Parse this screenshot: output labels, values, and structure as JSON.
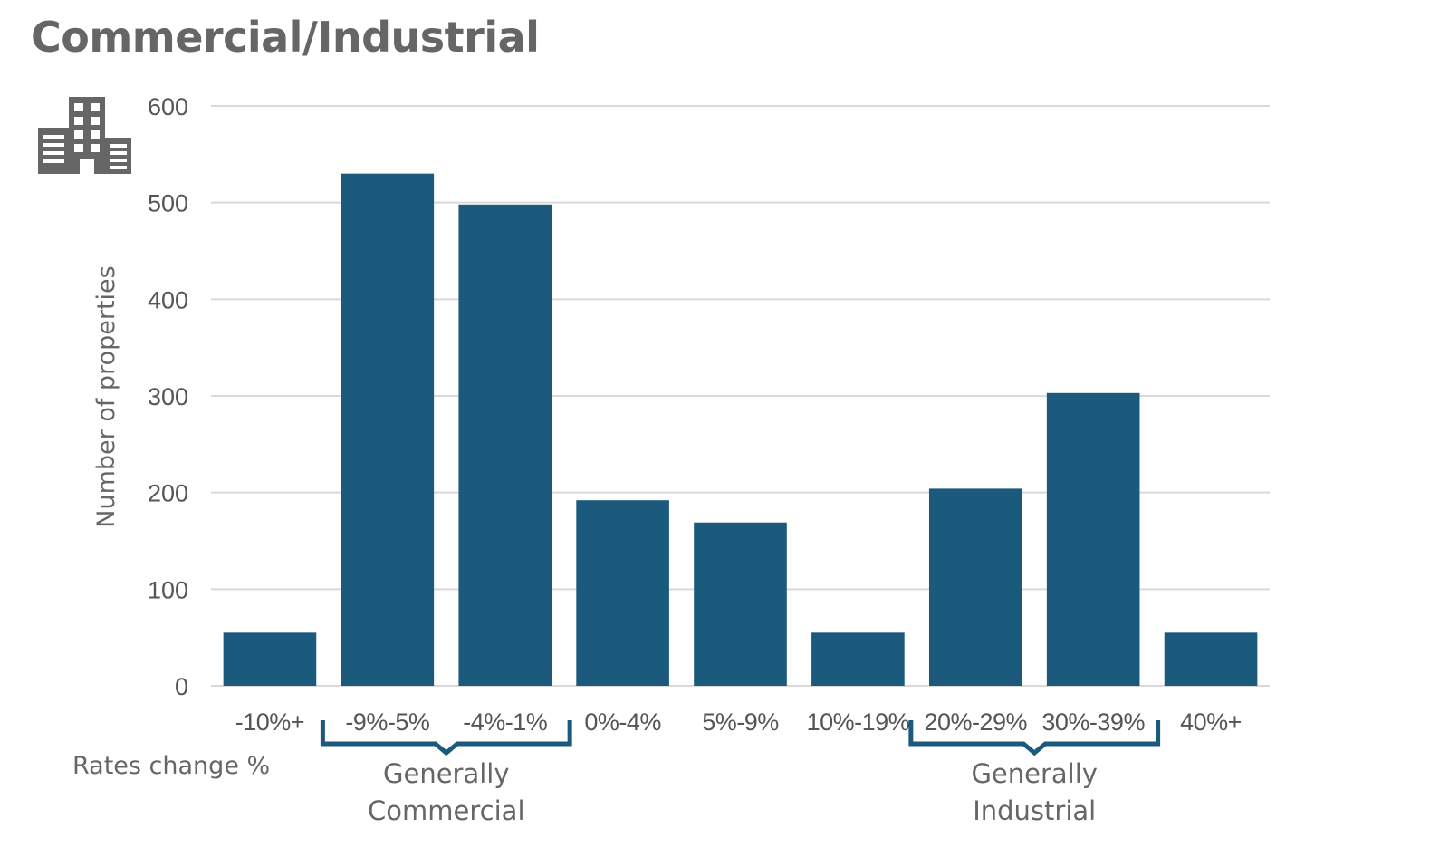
{
  "chart_data": {
    "type": "bar",
    "title": "Commercial/Industrial",
    "xlabel": "Rates change %",
    "ylabel": "Number of properties",
    "categories": [
      "-10%+",
      "-9%-5%",
      "-4%-1%",
      "0%-4%",
      "5%-9%",
      "10%-19%",
      "20%-29%",
      "30%-39%",
      "40%+"
    ],
    "values": [
      55,
      530,
      498,
      192,
      169,
      55,
      204,
      303,
      55
    ],
    "ylim": [
      0,
      600
    ],
    "yticks": [
      0,
      100,
      200,
      300,
      400,
      500,
      600
    ],
    "grid": true,
    "annotations": [
      {
        "label_line1": "Generally",
        "label_line2": "Commercial",
        "start_category": 1,
        "end_category": 2
      },
      {
        "label_line1": "Generally",
        "label_line2": "Industrial",
        "start_category": 6,
        "end_category": 7
      }
    ],
    "colors": {
      "bar": "#1b5a7c",
      "grid": "#d9d9d9",
      "bracket": "#1b5a7c"
    },
    "icon": "building-icon"
  }
}
